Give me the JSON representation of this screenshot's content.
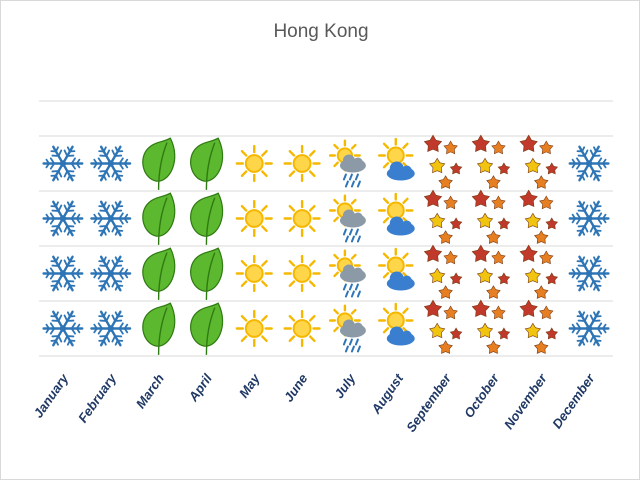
{
  "chart_data": {
    "type": "bar",
    "title": "Hong Kong",
    "categories": [
      "January",
      "February",
      "March",
      "April",
      "May",
      "June",
      "July",
      "August",
      "September",
      "October",
      "November",
      "December"
    ],
    "values": [
      4,
      4,
      4,
      4,
      4,
      4,
      4,
      4,
      4,
      4,
      4,
      4
    ],
    "ylim": [
      0,
      6
    ],
    "grid": true,
    "legend": "none",
    "symbols": [
      "snowflake",
      "snowflake",
      "leaf",
      "leaf",
      "sun",
      "sun",
      "sun-cloud-rain",
      "sun-cloud",
      "autumn-leaves",
      "autumn-leaves",
      "autumn-leaves",
      "snowflake"
    ],
    "colors": {
      "snowflake": "#2e75b6",
      "leaf": "#5cb82e",
      "leaf_edge": "#2f7a12",
      "sun": "#f5b800",
      "sun_core": "#ffd54a",
      "cloud": "#ffffff",
      "rain_cloud": "#8c9aa8",
      "blue_cloud": "#3a7fcf",
      "autumn_red": "#c0392b",
      "autumn_orange": "#e67e22",
      "autumn_yellow": "#f1c40f",
      "label": "#1f3864",
      "grid": "#d9d9d9"
    }
  }
}
